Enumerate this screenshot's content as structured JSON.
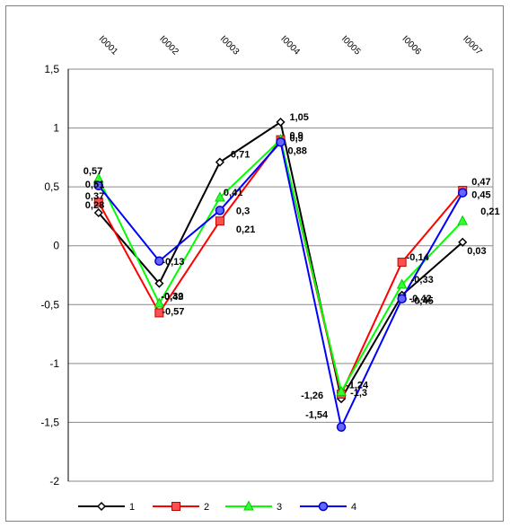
{
  "chart_data": {
    "type": "line",
    "categories": [
      "I0001",
      "I0002",
      "I0003",
      "I0004",
      "I0005",
      "I0006",
      "I0007"
    ],
    "ylim": [
      -2,
      1.5
    ],
    "yticks": [
      1.5,
      1,
      0.5,
      0,
      -0.5,
      -1,
      -1.5,
      -2
    ],
    "ytick_labels": [
      "1,5",
      "1",
      "0,5",
      "0",
      "-0,5",
      "-1",
      "-1,5",
      "-2"
    ],
    "grid": true,
    "legend_position": "bottom",
    "series": [
      {
        "name": "1",
        "color": "#000000",
        "marker": "diamond",
        "values": [
          0.28,
          -0.32,
          0.71,
          1.05,
          -1.3,
          -0.42,
          0.03
        ],
        "labels": [
          "0,28",
          "-0,32",
          "0,71",
          "1,05",
          "-1,3",
          "-0,42",
          "0,03"
        ]
      },
      {
        "name": "2",
        "color": "#ff0000",
        "marker": "square",
        "values": [
          0.37,
          -0.57,
          0.21,
          0.9,
          -1.26,
          -0.14,
          0.47
        ],
        "labels": [
          "0,37",
          "-0,57",
          "0,21",
          "0,9",
          "-1,26",
          "-0,14",
          "0,47"
        ]
      },
      {
        "name": "3",
        "color": "#00ff00",
        "marker": "triangle",
        "values": [
          0.57,
          -0.49,
          0.41,
          0.9,
          -1.24,
          -0.33,
          0.21
        ],
        "labels": [
          "0,57",
          "-0,49",
          "0,41",
          "0,9",
          "-1,24",
          "-0,33",
          "0,21"
        ]
      },
      {
        "name": "4",
        "color": "#0000ff",
        "marker": "circle",
        "values": [
          0.51,
          -0.13,
          0.3,
          0.88,
          -1.54,
          -0.45,
          0.45
        ],
        "labels": [
          "0,51",
          "-0,13",
          "0,3",
          "0,88",
          "-1,54",
          "-0,45",
          "0,45"
        ]
      }
    ]
  }
}
